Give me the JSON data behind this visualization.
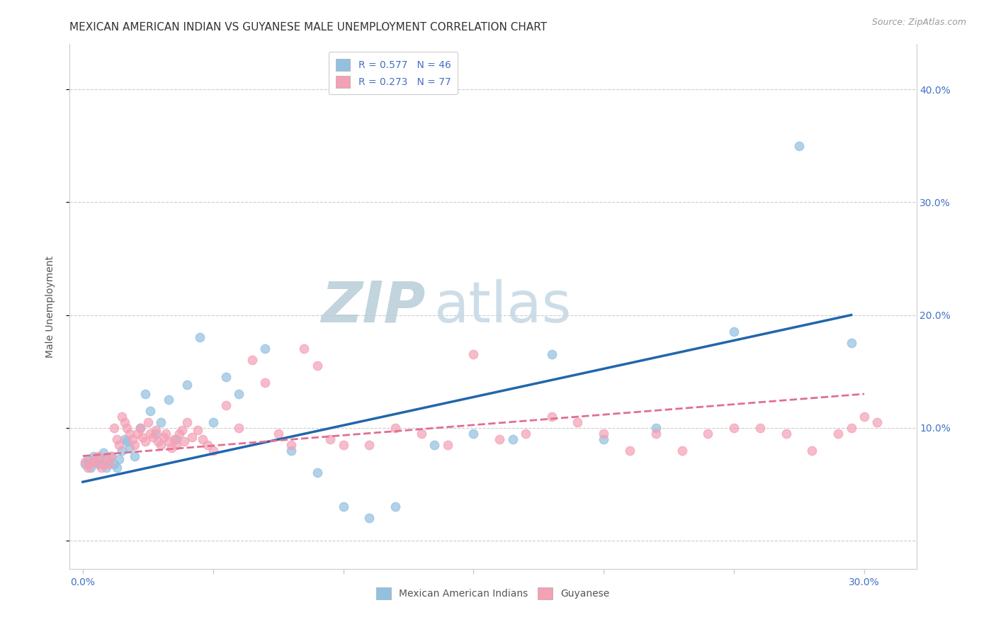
{
  "title": "MEXICAN AMERICAN INDIAN VS GUYANESE MALE UNEMPLOYMENT CORRELATION CHART",
  "source": "Source: ZipAtlas.com",
  "ylabel_label": "Male Unemployment",
  "x_ticks": [
    0.0,
    0.05,
    0.1,
    0.15,
    0.2,
    0.25,
    0.3
  ],
  "x_tick_labels": [
    "0.0%",
    "",
    "",
    "",
    "",
    "",
    "30.0%"
  ],
  "y_ticks": [
    0.0,
    0.1,
    0.2,
    0.3,
    0.4
  ],
  "y_tick_labels_right": [
    "",
    "10.0%",
    "20.0%",
    "30.0%",
    "40.0%"
  ],
  "xlim": [
    -0.005,
    0.32
  ],
  "ylim": [
    -0.025,
    0.44
  ],
  "blue_color": "#92c0e0",
  "blue_line_color": "#2166ac",
  "pink_color": "#f4a0b5",
  "pink_line_color": "#e07090",
  "watermark_zip": "ZIP",
  "watermark_atlas": "atlas",
  "legend_R1": "R = 0.577",
  "legend_N1": "N = 46",
  "legend_R2": "R = 0.273",
  "legend_N2": "N = 77",
  "blue_scatter_x": [
    0.001,
    0.002,
    0.003,
    0.004,
    0.005,
    0.006,
    0.007,
    0.008,
    0.009,
    0.01,
    0.011,
    0.012,
    0.013,
    0.014,
    0.015,
    0.016,
    0.017,
    0.018,
    0.02,
    0.022,
    0.024,
    0.026,
    0.028,
    0.03,
    0.033,
    0.036,
    0.04,
    0.045,
    0.05,
    0.055,
    0.06,
    0.07,
    0.08,
    0.09,
    0.1,
    0.11,
    0.12,
    0.135,
    0.15,
    0.165,
    0.18,
    0.2,
    0.22,
    0.25,
    0.275,
    0.295
  ],
  "blue_scatter_y": [
    0.068,
    0.072,
    0.065,
    0.075,
    0.07,
    0.068,
    0.072,
    0.078,
    0.065,
    0.07,
    0.075,
    0.068,
    0.065,
    0.072,
    0.08,
    0.09,
    0.088,
    0.082,
    0.075,
    0.1,
    0.13,
    0.115,
    0.095,
    0.105,
    0.125,
    0.09,
    0.138,
    0.18,
    0.105,
    0.145,
    0.13,
    0.17,
    0.08,
    0.06,
    0.03,
    0.02,
    0.03,
    0.085,
    0.095,
    0.09,
    0.165,
    0.09,
    0.1,
    0.185,
    0.35,
    0.175
  ],
  "pink_scatter_x": [
    0.001,
    0.002,
    0.003,
    0.004,
    0.005,
    0.006,
    0.007,
    0.008,
    0.009,
    0.01,
    0.011,
    0.012,
    0.013,
    0.014,
    0.015,
    0.016,
    0.017,
    0.018,
    0.019,
    0.02,
    0.021,
    0.022,
    0.023,
    0.024,
    0.025,
    0.026,
    0.027,
    0.028,
    0.029,
    0.03,
    0.031,
    0.032,
    0.033,
    0.034,
    0.035,
    0.036,
    0.037,
    0.038,
    0.039,
    0.04,
    0.042,
    0.044,
    0.046,
    0.048,
    0.05,
    0.055,
    0.06,
    0.065,
    0.07,
    0.075,
    0.08,
    0.085,
    0.09,
    0.095,
    0.1,
    0.11,
    0.12,
    0.13,
    0.14,
    0.15,
    0.16,
    0.17,
    0.18,
    0.19,
    0.2,
    0.21,
    0.22,
    0.23,
    0.24,
    0.25,
    0.26,
    0.27,
    0.28,
    0.29,
    0.295,
    0.3,
    0.305
  ],
  "pink_scatter_y": [
    0.07,
    0.065,
    0.068,
    0.072,
    0.07,
    0.075,
    0.065,
    0.068,
    0.072,
    0.068,
    0.075,
    0.1,
    0.09,
    0.085,
    0.11,
    0.105,
    0.1,
    0.095,
    0.09,
    0.085,
    0.095,
    0.1,
    0.092,
    0.088,
    0.105,
    0.095,
    0.092,
    0.098,
    0.088,
    0.085,
    0.092,
    0.095,
    0.088,
    0.082,
    0.09,
    0.085,
    0.095,
    0.098,
    0.088,
    0.105,
    0.092,
    0.098,
    0.09,
    0.085,
    0.08,
    0.12,
    0.1,
    0.16,
    0.14,
    0.095,
    0.085,
    0.17,
    0.155,
    0.09,
    0.085,
    0.085,
    0.1,
    0.095,
    0.085,
    0.165,
    0.09,
    0.095,
    0.11,
    0.105,
    0.095,
    0.08,
    0.095,
    0.08,
    0.095,
    0.1,
    0.1,
    0.095,
    0.08,
    0.095,
    0.1,
    0.11,
    0.105
  ],
  "background_color": "#ffffff",
  "grid_color": "#cccccc",
  "title_fontsize": 11,
  "axis_label_fontsize": 10,
  "tick_fontsize": 10,
  "legend_fontsize": 10,
  "source_fontsize": 9
}
